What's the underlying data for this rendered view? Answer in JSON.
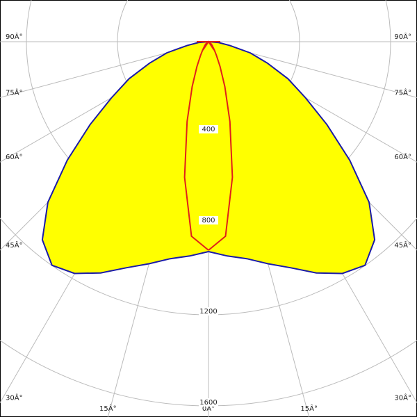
{
  "chart_data": {
    "type": "polar",
    "x": [
      0,
      5,
      10,
      15,
      20,
      25,
      30,
      35,
      40,
      45,
      50,
      55,
      60,
      65,
      70,
      75,
      80,
      85,
      90
    ],
    "series": [
      {
        "color": "#1a1aa8",
        "fill": "#ffff00",
        "values": [
          922,
          945,
          968,
          1010,
          1057,
          1121,
          1176,
          1199,
          1136,
          998,
          810,
          635,
          492,
          385,
          276,
          190,
          95,
          45,
          0
        ]
      },
      {
        "color": "#e0201a",
        "values": [
          916,
          858,
          605,
          363,
          210,
          120,
          70,
          45,
          30,
          22,
          15,
          10,
          7,
          5,
          3,
          2,
          1,
          1,
          0
        ]
      }
    ],
    "rlim": [
      0,
      1600
    ],
    "rticks": [
      400,
      800,
      1200,
      1600
    ],
    "angle_ticks": [
      {
        "value": 0,
        "label": "0Â°"
      },
      {
        "value": 15,
        "label": "15Â°"
      },
      {
        "value": 30,
        "label": "30Â°"
      },
      {
        "value": 45,
        "label": "45Â°"
      },
      {
        "value": 60,
        "label": "60Â°"
      },
      {
        "value": 75,
        "label": "75Â°"
      },
      {
        "value": 90,
        "label": "90Â°"
      }
    ],
    "grid": true
  }
}
